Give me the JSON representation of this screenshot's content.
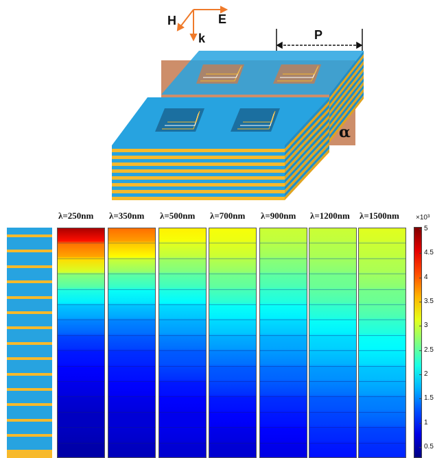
{
  "diagram": {
    "labels": {
      "h": "H",
      "e": "E",
      "k": "k",
      "p": "P",
      "alpha": "α"
    },
    "colors": {
      "metal": "#f7b92b",
      "dielectric": "#27a3e0",
      "cross_section": "#c8825a",
      "arrow": "#ef7a2a"
    }
  },
  "wavelengths": [
    {
      "label": "λ=250nm"
    },
    {
      "label": "λ=350nm"
    },
    {
      "label": "λ=500nm"
    },
    {
      "label": "λ=700nm"
    },
    {
      "label": "λ=900nm"
    },
    {
      "label": "λ=1200nm"
    },
    {
      "label": "λ=1500nm"
    }
  ],
  "colorbar": {
    "multiplier_label": "×10³",
    "ticks": [
      "5",
      "4.5",
      "4",
      "3.5",
      "3",
      "2.5",
      "2",
      "1.5",
      "1",
      "0.5"
    ],
    "colormap": "jet"
  },
  "field_profiles": [
    [
      4.8,
      3.9,
      3.4,
      2.7,
      2.2,
      1.8,
      1.5,
      1.2,
      1.0,
      0.9,
      0.8,
      0.7,
      0.6,
      0.6,
      0.5
    ],
    [
      3.9,
      3.5,
      3.0,
      2.5,
      2.1,
      1.8,
      1.5,
      1.3,
      1.1,
      1.0,
      0.9,
      0.8,
      0.7,
      0.7,
      0.6
    ],
    [
      3.3,
      3.1,
      2.8,
      2.5,
      2.2,
      1.9,
      1.7,
      1.5,
      1.3,
      1.2,
      1.0,
      0.9,
      0.8,
      0.8,
      0.7
    ],
    [
      3.2,
      3.1,
      2.9,
      2.6,
      2.4,
      2.1,
      1.9,
      1.7,
      1.5,
      1.3,
      1.2,
      1.0,
      0.9,
      0.8,
      0.7
    ],
    [
      3.0,
      2.9,
      2.7,
      2.5,
      2.3,
      2.1,
      1.9,
      1.7,
      1.6,
      1.4,
      1.3,
      1.1,
      1.0,
      0.9,
      0.8
    ],
    [
      3.0,
      2.9,
      2.8,
      2.6,
      2.5,
      2.3,
      2.1,
      1.9,
      1.8,
      1.6,
      1.5,
      1.3,
      1.2,
      1.1,
      1.0
    ],
    [
      3.1,
      3.0,
      2.9,
      2.8,
      2.6,
      2.5,
      2.3,
      2.1,
      2.0,
      1.8,
      1.7,
      1.5,
      1.4,
      1.2,
      1.1
    ]
  ]
}
